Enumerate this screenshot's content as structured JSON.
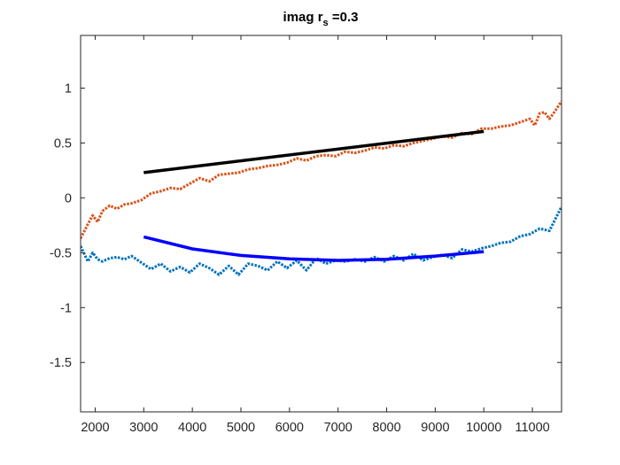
{
  "chart_data": {
    "type": "line",
    "title": {
      "prefix": "imag r",
      "subscript": "s",
      "suffix": " =0.3"
    },
    "xlabel": "",
    "ylabel": "",
    "xlim": [
      1700,
      11600
    ],
    "ylim": [
      -1.95,
      1.48
    ],
    "xticks": [
      2000,
      3000,
      4000,
      5000,
      6000,
      7000,
      8000,
      9000,
      10000,
      11000
    ],
    "yticks": [
      -1.5,
      -1,
      -0.5,
      0,
      0.5,
      1
    ],
    "grid": false,
    "legend": "none",
    "series": [
      {
        "style": "dotted",
        "color": "#D95319",
        "x": [
          1700,
          1850,
          1950,
          2050,
          2150,
          2300,
          2450,
          2600,
          2750,
          2950,
          3150,
          3350,
          3550,
          3750,
          3950,
          4150,
          4350,
          4550,
          4750,
          4950,
          5150,
          5350,
          5550,
          5750,
          5950,
          6150,
          6350,
          6550,
          6750,
          6950,
          7150,
          7350,
          7550,
          7750,
          7950,
          8150,
          8350,
          8550,
          8750,
          8950,
          9150,
          9350,
          9550,
          9750,
          9950,
          10150,
          10350,
          10550,
          10750,
          10950,
          11050,
          11150,
          11250,
          11350,
          11450,
          11600
        ],
        "y": [
          -0.37,
          -0.24,
          -0.16,
          -0.22,
          -0.12,
          -0.07,
          -0.1,
          -0.06,
          -0.05,
          -0.02,
          0.04,
          0.06,
          0.09,
          0.08,
          0.13,
          0.18,
          0.15,
          0.21,
          0.22,
          0.23,
          0.26,
          0.27,
          0.29,
          0.3,
          0.32,
          0.36,
          0.34,
          0.38,
          0.39,
          0.38,
          0.42,
          0.41,
          0.43,
          0.46,
          0.45,
          0.48,
          0.47,
          0.5,
          0.52,
          0.54,
          0.56,
          0.55,
          0.59,
          0.58,
          0.63,
          0.63,
          0.65,
          0.66,
          0.69,
          0.72,
          0.66,
          0.77,
          0.78,
          0.72,
          0.78,
          0.88
        ]
      },
      {
        "style": "dotted",
        "color": "#0072BD",
        "x": [
          1700,
          1850,
          1950,
          2050,
          2150,
          2300,
          2450,
          2600,
          2750,
          2950,
          3150,
          3350,
          3550,
          3750,
          3950,
          4150,
          4350,
          4550,
          4750,
          4950,
          5150,
          5350,
          5550,
          5750,
          5950,
          6150,
          6350,
          6550,
          6750,
          6950,
          7150,
          7350,
          7550,
          7750,
          7950,
          8150,
          8350,
          8550,
          8750,
          8950,
          9150,
          9350,
          9550,
          9750,
          9950,
          10150,
          10350,
          10550,
          10750,
          10950,
          11150,
          11350,
          11600
        ],
        "y": [
          -0.44,
          -0.58,
          -0.5,
          -0.56,
          -0.58,
          -0.55,
          -0.54,
          -0.56,
          -0.53,
          -0.59,
          -0.65,
          -0.6,
          -0.67,
          -0.63,
          -0.68,
          -0.6,
          -0.64,
          -0.7,
          -0.62,
          -0.7,
          -0.6,
          -0.62,
          -0.66,
          -0.58,
          -0.64,
          -0.57,
          -0.66,
          -0.55,
          -0.6,
          -0.57,
          -0.58,
          -0.56,
          -0.58,
          -0.54,
          -0.58,
          -0.53,
          -0.57,
          -0.51,
          -0.57,
          -0.54,
          -0.52,
          -0.55,
          -0.47,
          -0.49,
          -0.46,
          -0.44,
          -0.41,
          -0.4,
          -0.35,
          -0.33,
          -0.28,
          -0.3,
          -0.08
        ]
      },
      {
        "style": "solid",
        "color": "#0000FF",
        "x": [
          3000,
          4000,
          5000,
          6000,
          7000,
          8000,
          9000,
          10000
        ],
        "y": [
          -0.355,
          -0.465,
          -0.525,
          -0.555,
          -0.57,
          -0.56,
          -0.53,
          -0.49
        ]
      },
      {
        "style": "solid",
        "color": "#000000",
        "x": [
          3000,
          10000
        ],
        "y": [
          0.23,
          0.605
        ]
      }
    ]
  }
}
